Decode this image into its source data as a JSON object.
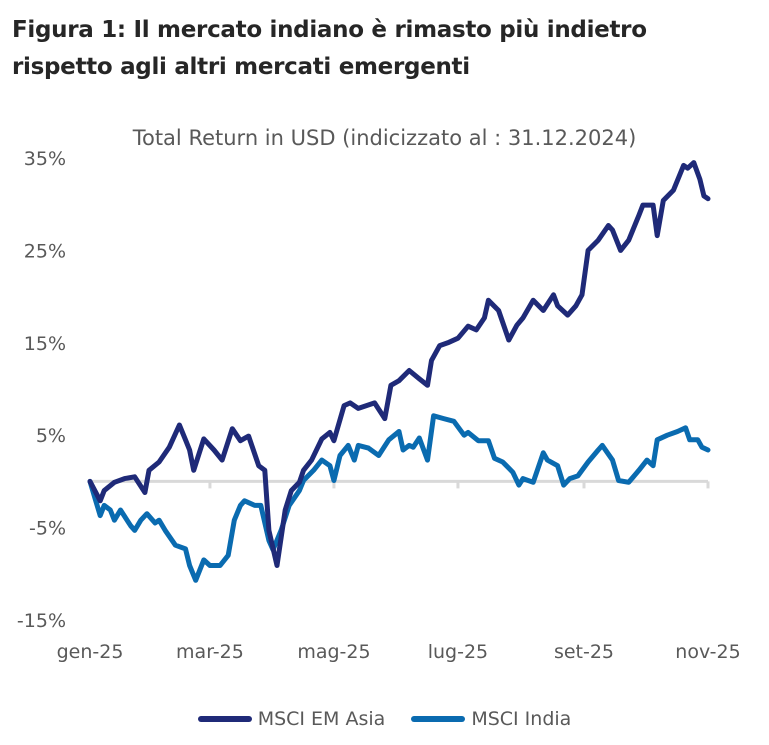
{
  "header": {
    "title_line1": "Figura 1: Il mercato indiano è rimasto più indietro",
    "title_line2": "rispetto agli altri mercati emergenti"
  },
  "chart_data": {
    "type": "line",
    "title": "Total Return in USD (indicizzato al : 31.12.2024)",
    "xlabel": "",
    "ylabel": "",
    "ylim": [
      -15,
      35
    ],
    "xlim": [
      "2025-01-01",
      "2025-11-01"
    ],
    "y_ticks": [
      35,
      25,
      15,
      5,
      -5,
      -15
    ],
    "y_tick_labels": [
      "35%",
      "25%",
      "15%",
      "5%",
      "-5%",
      "-15%"
    ],
    "x_ticks": [
      "2025-01-01",
      "2025-03-01",
      "2025-05-01",
      "2025-07-01",
      "2025-09-01",
      "2025-11-01"
    ],
    "x_tick_labels": [
      "gen-25",
      "mar-25",
      "mag-25",
      "lug-25",
      "set-25",
      "nov-25"
    ],
    "grid": false,
    "zero_line": true,
    "legend_position": "bottom",
    "series": [
      {
        "name": "MSCI EM Asia",
        "color": "#1f2a78",
        "x": [
          "2025-01-01",
          "2025-01-06",
          "2025-01-08",
          "2025-01-13",
          "2025-01-18",
          "2025-01-23",
          "2025-01-28",
          "2025-01-30",
          "2025-02-04",
          "2025-02-09",
          "2025-02-14",
          "2025-02-17",
          "2025-02-19",
          "2025-02-21",
          "2025-02-26",
          "2025-03-03",
          "2025-03-07",
          "2025-03-12",
          "2025-03-16",
          "2025-03-20",
          "2025-03-25",
          "2025-03-28",
          "2025-03-30",
          "2025-04-03",
          "2025-04-07",
          "2025-04-10",
          "2025-04-14",
          "2025-04-16",
          "2025-04-20",
          "2025-04-25",
          "2025-04-29",
          "2025-05-01",
          "2025-05-06",
          "2025-05-09",
          "2025-05-13",
          "2025-05-21",
          "2025-05-26",
          "2025-05-29",
          "2025-06-02",
          "2025-06-07",
          "2025-06-12",
          "2025-06-16",
          "2025-06-18",
          "2025-06-22",
          "2025-06-26",
          "2025-07-01",
          "2025-07-06",
          "2025-07-10",
          "2025-07-14",
          "2025-07-16",
          "2025-07-21",
          "2025-07-26",
          "2025-07-30",
          "2025-08-02",
          "2025-08-07",
          "2025-08-12",
          "2025-08-17",
          "2025-08-19",
          "2025-08-24",
          "2025-08-28",
          "2025-08-31",
          "2025-09-03",
          "2025-09-08",
          "2025-09-13",
          "2025-09-15",
          "2025-09-19",
          "2025-09-23",
          "2025-09-28",
          "2025-09-30",
          "2025-10-05",
          "2025-10-07",
          "2025-10-10",
          "2025-10-15",
          "2025-10-20",
          "2025-10-22",
          "2025-10-25",
          "2025-10-28",
          "2025-10-30",
          "2025-11-01"
        ],
        "values": [
          0,
          -2.1,
          -1.0,
          -0.1,
          0.3,
          0.5,
          -1.2,
          1.2,
          2.1,
          3.7,
          6.1,
          4.5,
          3.4,
          1.2,
          4.6,
          3.4,
          2.3,
          5.7,
          4.4,
          4.9,
          1.7,
          1.2,
          -5.3,
          -9.1,
          -3.1,
          -1.0,
          -0.1,
          1.2,
          2.3,
          4.6,
          5.3,
          4.4,
          8.2,
          8.5,
          7.9,
          8.5,
          6.8,
          10.4,
          10.9,
          12.0,
          11.1,
          10.4,
          13.1,
          14.7,
          15.0,
          15.5,
          16.8,
          16.4,
          17.7,
          19.6,
          18.5,
          15.3,
          16.9,
          17.7,
          19.6,
          18.5,
          20.2,
          19.0,
          18.0,
          19.0,
          20.2,
          25.0,
          26.1,
          27.7,
          27.2,
          25.0,
          26.1,
          28.8,
          29.9,
          29.9,
          26.6,
          30.4,
          31.5,
          34.2,
          33.9,
          34.5,
          32.7,
          30.9,
          30.6
        ]
      },
      {
        "name": "MSCI India",
        "color": "#0a6bb0",
        "x": [
          "2025-01-01",
          "2025-01-03",
          "2025-01-06",
          "2025-01-08",
          "2025-01-11",
          "2025-01-13",
          "2025-01-16",
          "2025-01-21",
          "2025-01-23",
          "2025-01-26",
          "2025-01-29",
          "2025-02-02",
          "2025-02-04",
          "2025-02-07",
          "2025-02-12",
          "2025-02-17",
          "2025-02-19",
          "2025-02-22",
          "2025-02-26",
          "2025-03-01",
          "2025-03-06",
          "2025-03-10",
          "2025-03-13",
          "2025-03-16",
          "2025-03-18",
          "2025-03-23",
          "2025-03-26",
          "2025-03-30",
          "2025-04-01",
          "2025-04-05",
          "2025-04-09",
          "2025-04-14",
          "2025-04-16",
          "2025-04-21",
          "2025-04-25",
          "2025-04-29",
          "2025-05-01",
          "2025-05-04",
          "2025-05-08",
          "2025-05-11",
          "2025-05-13",
          "2025-05-18",
          "2025-05-23",
          "2025-05-28",
          "2025-06-02",
          "2025-06-04",
          "2025-06-07",
          "2025-06-09",
          "2025-06-12",
          "2025-06-16",
          "2025-06-19",
          "2025-06-24",
          "2025-06-29",
          "2025-07-04",
          "2025-07-06",
          "2025-07-11",
          "2025-07-16",
          "2025-07-19",
          "2025-07-23",
          "2025-07-28",
          "2025-07-31",
          "2025-08-02",
          "2025-08-07",
          "2025-08-12",
          "2025-08-14",
          "2025-08-19",
          "2025-08-22",
          "2025-08-25",
          "2025-08-29",
          "2025-09-03",
          "2025-09-08",
          "2025-09-10",
          "2025-09-15",
          "2025-09-18",
          "2025-09-23",
          "2025-09-28",
          "2025-10-02",
          "2025-10-05",
          "2025-10-07",
          "2025-10-12",
          "2025-10-17",
          "2025-10-21",
          "2025-10-23",
          "2025-10-27",
          "2025-10-29",
          "2025-11-01"
        ],
        "values": [
          0,
          -1.5,
          -3.7,
          -2.6,
          -3.1,
          -4.2,
          -3.1,
          -4.8,
          -5.3,
          -4.2,
          -3.5,
          -4.5,
          -4.2,
          -5.3,
          -6.9,
          -7.3,
          -9.1,
          -10.7,
          -8.5,
          -9.1,
          -9.1,
          -8.0,
          -4.2,
          -2.6,
          -2.1,
          -2.6,
          -2.6,
          -6.4,
          -7.4,
          -5.3,
          -2.6,
          -1.0,
          0.1,
          1.2,
          2.3,
          1.7,
          0.1,
          2.8,
          3.9,
          2.3,
          3.9,
          3.6,
          2.8,
          4.5,
          5.4,
          3.4,
          3.9,
          3.7,
          4.7,
          2.3,
          7.1,
          6.8,
          6.5,
          5.0,
          5.3,
          4.4,
          4.4,
          2.5,
          2.1,
          1.0,
          -0.4,
          0.3,
          -0.1,
          3.1,
          2.3,
          1.7,
          -0.4,
          0.3,
          0.6,
          2.1,
          3.4,
          3.9,
          2.3,
          0.1,
          -0.1,
          1.2,
          2.3,
          1.7,
          4.5,
          5.0,
          5.4,
          5.8,
          4.5,
          4.5,
          3.7,
          3.4
        ]
      }
    ]
  }
}
